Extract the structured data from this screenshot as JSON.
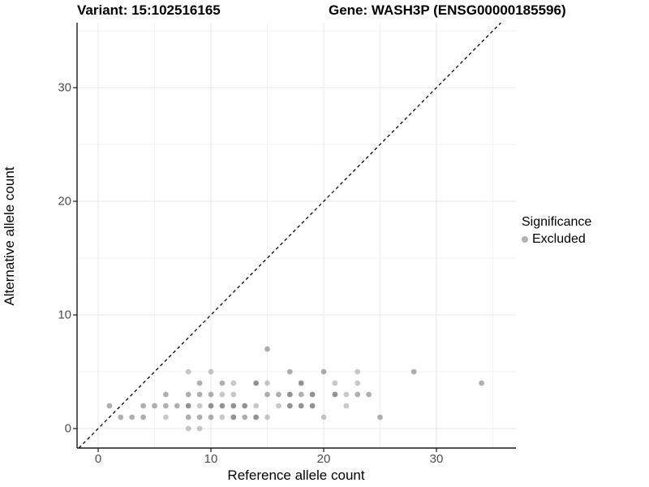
{
  "titles": {
    "variant": "Variant: 15:102516165",
    "gene": "Gene: WASH3P (ENSG00000185596)"
  },
  "legend": {
    "title": "Significance",
    "items": [
      {
        "label": "Excluded",
        "color": "#b3b3b3"
      }
    ]
  },
  "colors": {
    "background": "#ffffff",
    "grid_major": "#e7e7e7",
    "grid_minor": "#f3f3f3",
    "axis_line": "#1a1a1a",
    "tick_label": "#4d4d4d",
    "identity_line": "#000000",
    "point_base": "#6e6e6e"
  },
  "chart_data": {
    "type": "scatter",
    "xlabel": "Reference allele count",
    "ylabel": "Alternative allele count",
    "x_major_ticks": [
      0,
      10,
      20,
      30
    ],
    "y_major_ticks": [
      0,
      10,
      20,
      30
    ],
    "x_minor_gridlines": [
      5,
      15,
      25,
      35
    ],
    "y_minor_gridlines": [
      5,
      15,
      25,
      35
    ],
    "xlim": [
      -1.9,
      37.0
    ],
    "ylim": [
      -1.7,
      35.7
    ],
    "grid": true,
    "legend_position": "right",
    "identity_line": {
      "slope": 1,
      "intercept": 0,
      "style": "dashed"
    },
    "point_format": "[reference_allele_count, alternative_allele_count, overlap_shade(1=light,2=medium,3=dark)]",
    "series": [
      {
        "name": "Excluded",
        "points": [
          [
            8,
            0,
            1
          ],
          [
            9,
            0,
            1
          ],
          [
            2,
            1,
            2
          ],
          [
            3,
            1,
            2
          ],
          [
            4,
            1,
            2
          ],
          [
            6,
            1,
            1
          ],
          [
            8,
            1,
            2
          ],
          [
            9,
            1,
            2
          ],
          [
            10,
            1,
            2
          ],
          [
            11,
            1,
            1
          ],
          [
            12,
            1,
            3
          ],
          [
            13,
            1,
            2
          ],
          [
            14,
            1,
            3
          ],
          [
            15,
            1,
            1
          ],
          [
            20,
            1,
            1
          ],
          [
            25,
            1,
            2
          ],
          [
            1,
            2,
            2
          ],
          [
            4,
            2,
            2
          ],
          [
            5,
            2,
            2
          ],
          [
            6,
            2,
            2
          ],
          [
            7,
            2,
            2
          ],
          [
            8,
            2,
            3
          ],
          [
            9,
            2,
            1
          ],
          [
            10,
            2,
            3
          ],
          [
            11,
            2,
            3
          ],
          [
            12,
            2,
            3
          ],
          [
            13,
            2,
            3
          ],
          [
            14,
            2,
            1
          ],
          [
            16,
            2,
            1
          ],
          [
            17,
            2,
            3
          ],
          [
            18,
            2,
            3
          ],
          [
            19,
            2,
            3
          ],
          [
            22,
            2,
            1
          ],
          [
            6,
            3,
            2
          ],
          [
            8,
            3,
            2
          ],
          [
            9,
            3,
            2
          ],
          [
            10,
            3,
            2
          ],
          [
            11,
            3,
            1
          ],
          [
            12,
            3,
            1
          ],
          [
            15,
            3,
            2
          ],
          [
            16,
            3,
            2
          ],
          [
            17,
            3,
            3
          ],
          [
            18,
            3,
            2
          ],
          [
            19,
            3,
            3
          ],
          [
            21,
            3,
            3
          ],
          [
            22,
            3,
            1
          ],
          [
            23,
            3,
            2
          ],
          [
            24,
            3,
            2
          ],
          [
            9,
            4,
            2
          ],
          [
            11,
            4,
            2
          ],
          [
            12,
            4,
            1
          ],
          [
            14,
            4,
            3
          ],
          [
            15,
            4,
            1
          ],
          [
            18,
            4,
            3
          ],
          [
            21,
            4,
            1
          ],
          [
            23,
            4,
            1
          ],
          [
            34,
            4,
            2
          ],
          [
            8,
            5,
            1
          ],
          [
            10,
            5,
            1
          ],
          [
            17,
            5,
            2
          ],
          [
            20,
            5,
            2
          ],
          [
            23,
            5,
            1
          ],
          [
            28,
            5,
            2
          ],
          [
            15,
            7,
            2
          ]
        ]
      }
    ]
  }
}
